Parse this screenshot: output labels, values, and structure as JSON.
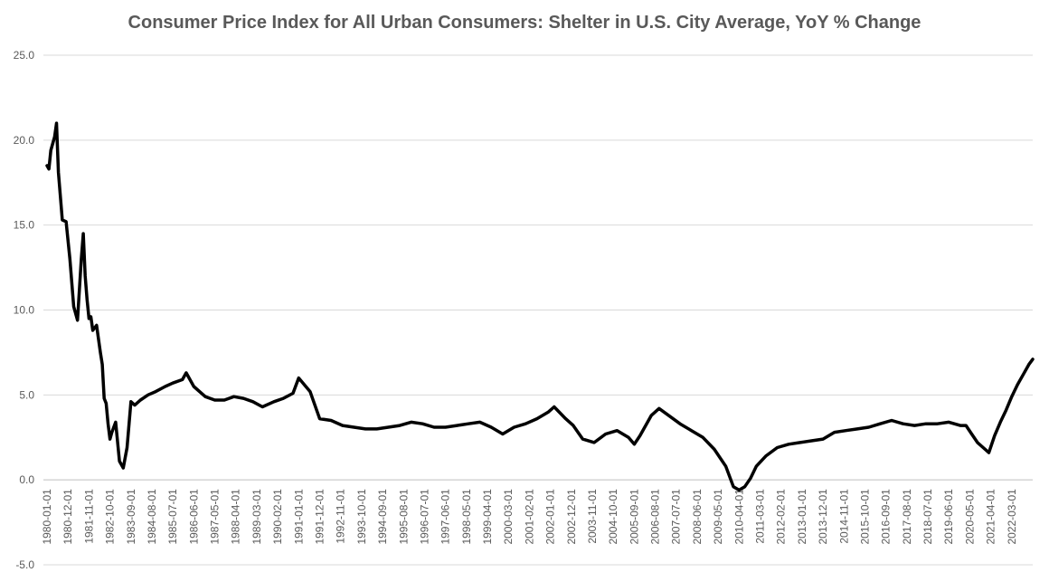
{
  "chart_data": {
    "type": "line",
    "title": "Consumer Price Index for All Urban Consumers: Shelter in U.S. City Average, YoY % Change",
    "xlabel": "",
    "ylabel": "",
    "ylim": [
      -5,
      25
    ],
    "ytick_labels": [
      "25.0",
      "20.0",
      "15.0",
      "10.0",
      "5.0",
      "0.0",
      "-5.0"
    ],
    "ytick_values": [
      25,
      20,
      15,
      10,
      5,
      0,
      -5
    ],
    "xtick_labels": [
      "1980-01-01",
      "1980-12-01",
      "1981-11-01",
      "1982-10-01",
      "1983-09-01",
      "1984-08-01",
      "1985-07-01",
      "1986-06-01",
      "1987-05-01",
      "1988-04-01",
      "1989-03-01",
      "1990-02-01",
      "1991-01-01",
      "1991-12-01",
      "1992-11-01",
      "1993-10-01",
      "1994-09-01",
      "1995-08-01",
      "1996-07-01",
      "1997-06-01",
      "1998-05-01",
      "1999-04-01",
      "2000-03-01",
      "2001-02-01",
      "2002-01-01",
      "2002-12-01",
      "2003-11-01",
      "2004-10-01",
      "2005-09-01",
      "2006-08-01",
      "2007-07-01",
      "2008-06-01",
      "2009-05-01",
      "2010-04-01",
      "2011-03-01",
      "2012-02-01",
      "2013-01-01",
      "2013-12-01",
      "2014-11-01",
      "2015-10-01",
      "2016-09-01",
      "2017-08-01",
      "2018-07-01",
      "2019-06-01",
      "2020-05-01",
      "2021-04-01",
      "2022-03-01"
    ],
    "grid": true,
    "legend": "none",
    "series": [
      {
        "x": [
          "1980-01-01",
          "1980-02-01",
          "1980-03-01",
          "1980-04-01",
          "1980-05-01",
          "1980-06-01",
          "1980-07-01",
          "1980-09-01",
          "1980-11-01",
          "1981-01-01",
          "1981-03-01",
          "1981-05-01",
          "1981-07-01",
          "1981-08-01",
          "1981-09-01",
          "1981-10-01",
          "1981-11-01",
          "1981-12-01",
          "1982-01-01",
          "1982-03-01",
          "1982-05-01",
          "1982-06-01",
          "1982-07-01",
          "1982-08-01",
          "1982-09-01",
          "1982-10-01",
          "1982-11-01",
          "1983-01-01",
          "1983-03-01",
          "1983-05-01",
          "1983-07-01",
          "1983-09-01",
          "1983-11-01",
          "1984-02-01",
          "1984-06-01",
          "1984-10-01",
          "1985-03-01",
          "1985-07-01",
          "1985-12-01",
          "1986-02-01",
          "1986-06-01",
          "1986-12-01",
          "1987-05-01",
          "1987-10-01",
          "1988-03-01",
          "1988-08-01",
          "1989-01-01",
          "1989-06-01",
          "1989-12-01",
          "1990-05-01",
          "1990-10-01",
          "1991-01-01",
          "1991-04-01",
          "1991-07-01",
          "1991-12-01",
          "1992-06-01",
          "1992-12-01",
          "1993-06-01",
          "1993-12-01",
          "1994-06-01",
          "1994-12-01",
          "1995-06-01",
          "1995-12-01",
          "1996-06-01",
          "1996-12-01",
          "1997-06-01",
          "1997-12-01",
          "1998-06-01",
          "1998-12-01",
          "1999-06-01",
          "1999-12-01",
          "2000-06-01",
          "2000-12-01",
          "2001-06-01",
          "2001-12-01",
          "2002-03-01",
          "2002-09-01",
          "2003-01-01",
          "2003-06-01",
          "2003-12-01",
          "2004-06-01",
          "2004-12-01",
          "2005-06-01",
          "2005-09-01",
          "2005-12-01",
          "2006-06-01",
          "2006-10-01",
          "2007-03-01",
          "2007-09-01",
          "2008-03-01",
          "2008-09-01",
          "2009-03-01",
          "2009-09-01",
          "2010-01-01",
          "2010-04-01",
          "2010-07-01",
          "2010-10-01",
          "2011-01-01",
          "2011-06-01",
          "2011-12-01",
          "2012-06-01",
          "2012-12-01",
          "2013-06-01",
          "2013-12-01",
          "2014-06-01",
          "2014-12-01",
          "2015-06-01",
          "2015-12-01",
          "2016-06-01",
          "2016-12-01",
          "2017-06-01",
          "2017-12-01",
          "2018-06-01",
          "2018-12-01",
          "2019-06-01",
          "2019-12-01",
          "2020-03-01",
          "2020-06-01",
          "2020-09-01",
          "2020-12-01",
          "2021-03-01",
          "2021-06-01",
          "2021-09-01",
          "2021-12-01",
          "2022-03-01",
          "2022-06-01",
          "2022-09-01",
          "2022-12-01",
          "2023-02-01"
        ],
        "values": [
          18.5,
          18.3,
          19.4,
          19.8,
          20.2,
          21.0,
          18.1,
          15.3,
          15.2,
          13.0,
          10.2,
          9.4,
          13.0,
          14.5,
          12.0,
          10.6,
          9.5,
          9.6,
          8.8,
          9.1,
          7.5,
          6.8,
          4.8,
          4.5,
          3.3,
          2.4,
          2.8,
          3.4,
          1.1,
          0.7,
          1.9,
          4.6,
          4.4,
          4.7,
          5.0,
          5.2,
          5.5,
          5.7,
          5.9,
          6.3,
          5.5,
          4.9,
          4.7,
          4.7,
          4.9,
          4.8,
          4.6,
          4.3,
          4.6,
          4.8,
          5.1,
          6.0,
          5.6,
          5.2,
          3.6,
          3.5,
          3.2,
          3.1,
          3.0,
          3.0,
          3.1,
          3.2,
          3.4,
          3.3,
          3.1,
          3.1,
          3.2,
          3.3,
          3.4,
          3.1,
          2.7,
          3.1,
          3.3,
          3.6,
          4.0,
          4.3,
          3.6,
          3.2,
          2.4,
          2.2,
          2.7,
          2.9,
          2.5,
          2.1,
          2.6,
          3.8,
          4.2,
          3.8,
          3.3,
          2.9,
          2.5,
          1.8,
          0.8,
          -0.4,
          -0.6,
          -0.4,
          0.1,
          0.8,
          1.4,
          1.9,
          2.1,
          2.2,
          2.3,
          2.4,
          2.8,
          2.9,
          3.0,
          3.1,
          3.3,
          3.5,
          3.3,
          3.2,
          3.3,
          3.3,
          3.4,
          3.2,
          3.2,
          2.7,
          2.2,
          1.9,
          1.6,
          2.6,
          3.4,
          4.1,
          4.9,
          5.6,
          6.2,
          6.8,
          7.1
        ]
      }
    ]
  }
}
